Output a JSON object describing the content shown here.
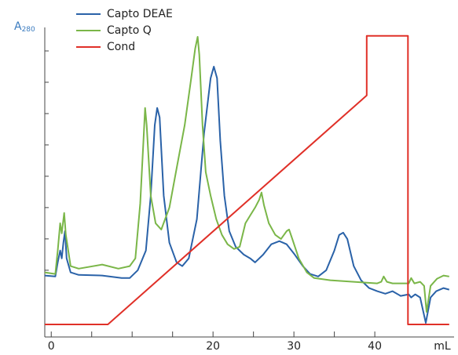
{
  "chart_data": {
    "type": "line",
    "xlabel": "mL",
    "ylabel": "A",
    "ylabel_sub": "280",
    "xlim": [
      -0.8,
      49.8
    ],
    "ylim": [
      -1.13,
      8.75
    ],
    "xticks": [
      0,
      20,
      30,
      40
    ],
    "xminorticks": [
      5,
      10,
      15,
      25,
      35
    ],
    "yminorticks": [
      1,
      2,
      3,
      4,
      5,
      6,
      7,
      8
    ],
    "legend": "upper left",
    "series": [
      {
        "name": "Capto DEAE",
        "color": "#2a62a8",
        "x": [
          -0.8,
          0.5,
          0.8,
          1.1,
          1.3,
          1.5,
          1.7,
          1.9,
          2.4,
          3.4,
          6.3,
          8.7,
          9.7,
          10.7,
          11.7,
          12.3,
          12.8,
          13.1,
          13.4,
          13.9,
          14.6,
          15.5,
          16.2,
          17.0,
          18.0,
          18.9,
          19.7,
          20.1,
          20.5,
          20.9,
          21.4,
          22.0,
          22.8,
          23.8,
          24.6,
          25.2,
          26.2,
          27.2,
          28.2,
          29.1,
          30.1,
          31.1,
          32.0,
          33.0,
          34.0,
          35.0,
          35.6,
          36.1,
          36.6,
          37.4,
          38.3,
          39.3,
          40.3,
          41.3,
          42.2,
          43.2,
          44.2,
          44.5,
          45.0,
          45.6,
          46.3,
          46.9,
          47.6,
          48.5,
          49.2
        ],
        "values": [
          0.83,
          0.8,
          1.25,
          1.63,
          1.38,
          1.88,
          2.25,
          1.38,
          0.93,
          0.85,
          0.83,
          0.75,
          0.75,
          1.0,
          1.63,
          3.38,
          5.63,
          6.18,
          5.88,
          3.38,
          1.88,
          1.25,
          1.13,
          1.38,
          2.63,
          5.38,
          7.13,
          7.5,
          7.13,
          5.13,
          3.38,
          2.25,
          1.75,
          1.5,
          1.38,
          1.25,
          1.5,
          1.83,
          1.93,
          1.83,
          1.5,
          1.13,
          0.88,
          0.8,
          1.0,
          1.63,
          2.13,
          2.2,
          2.0,
          1.13,
          0.68,
          0.43,
          0.33,
          0.25,
          0.33,
          0.18,
          0.23,
          0.13,
          0.23,
          0.13,
          -0.68,
          0.13,
          0.33,
          0.43,
          0.38
        ]
      },
      {
        "name": "Capto Q",
        "color": "#7ab648",
        "x": [
          -0.8,
          0.5,
          0.8,
          1.1,
          1.3,
          1.6,
          1.8,
          2.4,
          3.4,
          6.3,
          8.3,
          9.7,
          10.4,
          11.0,
          11.4,
          11.6,
          11.8,
          12.3,
          12.9,
          13.6,
          14.6,
          15.5,
          16.5,
          17.3,
          17.8,
          18.1,
          18.3,
          18.7,
          19.1,
          19.7,
          20.4,
          21.1,
          21.8,
          22.6,
          23.3,
          24.0,
          24.6,
          25.2,
          25.7,
          26.0,
          26.3,
          26.9,
          27.7,
          28.4,
          29.1,
          29.4,
          29.8,
          30.6,
          31.6,
          32.5,
          34.5,
          37.4,
          40.3,
          40.8,
          41.1,
          41.5,
          42.2,
          44.2,
          44.5,
          44.9,
          45.6,
          46.1,
          46.4,
          46.9,
          47.7,
          48.5,
          49.2
        ],
        "values": [
          0.93,
          0.88,
          1.63,
          2.5,
          2.18,
          2.83,
          2.13,
          1.13,
          1.05,
          1.18,
          1.05,
          1.13,
          1.38,
          3.13,
          5.13,
          6.18,
          5.63,
          3.38,
          2.5,
          2.3,
          3.0,
          4.25,
          5.63,
          7.13,
          8.08,
          8.45,
          7.88,
          5.63,
          4.13,
          3.38,
          2.63,
          2.13,
          1.83,
          1.68,
          1.75,
          2.5,
          2.75,
          3.0,
          3.25,
          3.48,
          3.08,
          2.5,
          2.13,
          2.0,
          2.25,
          2.3,
          2.0,
          1.38,
          0.93,
          0.75,
          0.68,
          0.63,
          0.58,
          0.63,
          0.8,
          0.63,
          0.58,
          0.58,
          0.75,
          0.58,
          0.63,
          0.5,
          -0.33,
          0.5,
          0.73,
          0.83,
          0.8
        ]
      },
      {
        "name": "Cond",
        "color": "#e03028",
        "x": [
          -0.8,
          7.0,
          39.0,
          39.0,
          44.1,
          44.1,
          49.2
        ],
        "values": [
          -0.73,
          -0.73,
          6.58,
          8.48,
          8.48,
          -0.73,
          -0.73
        ]
      }
    ]
  }
}
